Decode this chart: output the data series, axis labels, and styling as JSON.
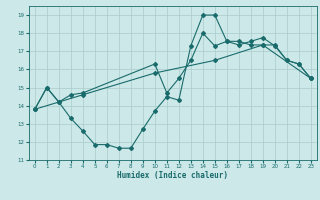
{
  "title": "",
  "xlabel": "Humidex (Indice chaleur)",
  "ylabel": "",
  "bg_color": "#cce8e8",
  "grid_color": "#aacccc",
  "line_color": "#1a6b6b",
  "xlim": [
    -0.5,
    23.5
  ],
  "ylim": [
    11,
    19.5
  ],
  "xticks": [
    0,
    1,
    2,
    3,
    4,
    5,
    6,
    7,
    8,
    9,
    10,
    11,
    12,
    13,
    14,
    15,
    16,
    17,
    18,
    19,
    20,
    21,
    22,
    23
  ],
  "yticks": [
    11,
    12,
    13,
    14,
    15,
    16,
    17,
    18,
    19
  ],
  "line1_x": [
    0,
    1,
    2,
    3,
    4,
    5,
    6,
    7,
    8,
    9,
    10,
    11,
    12,
    13,
    14,
    15,
    16,
    17,
    18,
    19,
    20,
    21,
    22,
    23
  ],
  "line1_y": [
    13.8,
    15.0,
    14.2,
    13.3,
    12.6,
    11.85,
    11.85,
    11.65,
    11.65,
    12.7,
    13.7,
    14.5,
    14.3,
    17.3,
    19.0,
    19.0,
    17.55,
    17.35,
    17.55,
    17.75,
    17.3,
    16.5,
    16.3,
    15.5
  ],
  "line2_x": [
    0,
    1,
    2,
    3,
    4,
    10,
    11,
    12,
    13,
    14,
    15,
    16,
    17,
    18,
    19,
    20,
    21,
    22,
    23
  ],
  "line2_y": [
    13.8,
    15.0,
    14.2,
    14.6,
    14.7,
    16.3,
    14.7,
    15.5,
    16.5,
    18.0,
    17.3,
    17.55,
    17.55,
    17.35,
    17.35,
    17.35,
    16.5,
    16.3,
    15.5
  ],
  "line3_x": [
    0,
    4,
    10,
    15,
    19,
    23
  ],
  "line3_y": [
    13.8,
    14.6,
    15.8,
    16.5,
    17.35,
    15.5
  ]
}
